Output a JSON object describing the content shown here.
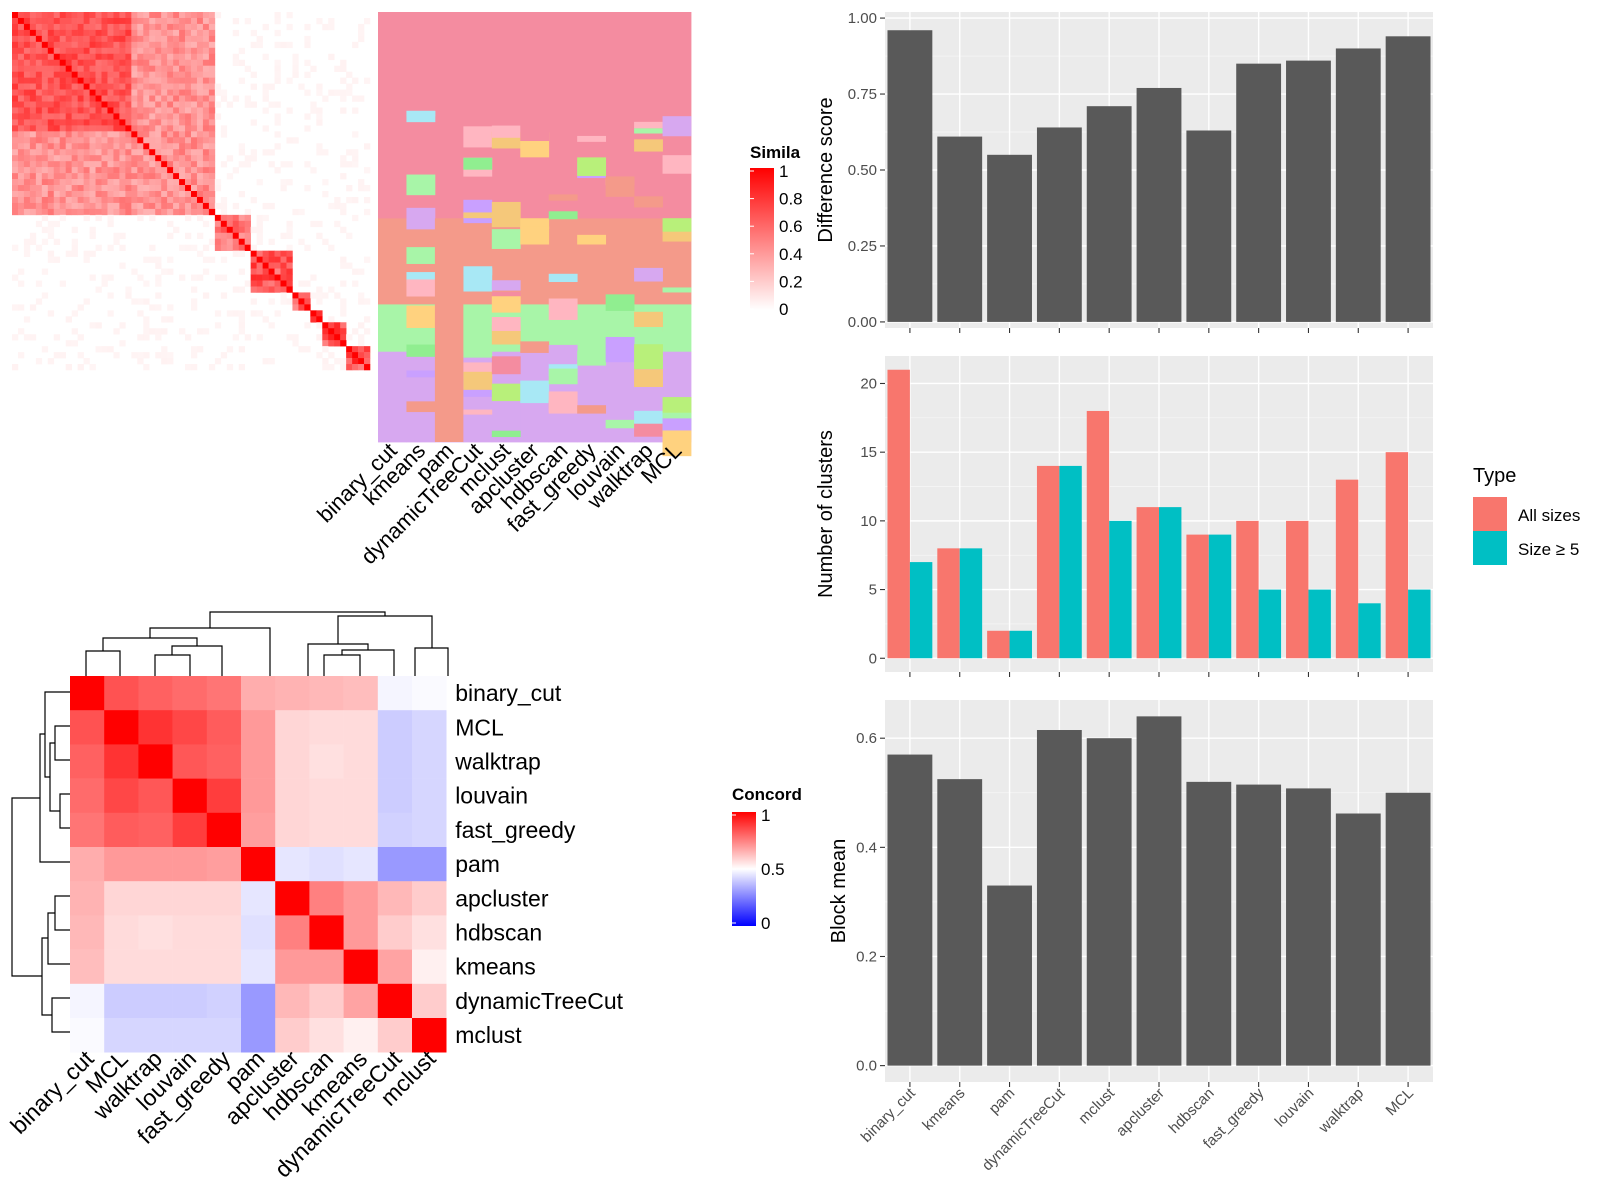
{
  "colors": {
    "bar": "#595959",
    "panel": "#ebebeb",
    "all_sizes": "#F8766D",
    "size_ge_5": "#00BFC4",
    "heat_high": "#ff0000",
    "heat_mid": "#ffffff",
    "heat_low": "#0000ff"
  },
  "similarity_panel": {
    "legend_title": "Simila",
    "legend_ticks": [
      "1",
      "0.8",
      "0.6",
      "0.4",
      "0.2",
      "0"
    ],
    "column_labels": [
      "binary_cut",
      "kmeans",
      "pam",
      "dynamicTreeCut",
      "mclust",
      "apcluster",
      "hdbscan",
      "fast_greedy",
      "louvain",
      "walktrap",
      "MCL"
    ]
  },
  "concordance_panel": {
    "legend_title": "Concord",
    "legend_ticks": [
      "1",
      "0.5",
      "0"
    ],
    "methods": [
      "binary_cut",
      "MCL",
      "walktrap",
      "louvain",
      "fast_greedy",
      "pam",
      "apcluster",
      "hdbscan",
      "kmeans",
      "dynamicTreeCut",
      "mclust"
    ],
    "matrix": [
      [
        1.0,
        0.84,
        0.81,
        0.79,
        0.77,
        0.66,
        0.65,
        0.64,
        0.63,
        0.48,
        0.49
      ],
      [
        0.84,
        1.0,
        0.9,
        0.86,
        0.82,
        0.7,
        0.58,
        0.57,
        0.57,
        0.4,
        0.42
      ],
      [
        0.81,
        0.9,
        1.0,
        0.83,
        0.81,
        0.7,
        0.58,
        0.56,
        0.57,
        0.4,
        0.42
      ],
      [
        0.79,
        0.86,
        0.83,
        1.0,
        0.88,
        0.7,
        0.58,
        0.57,
        0.57,
        0.4,
        0.42
      ],
      [
        0.77,
        0.82,
        0.81,
        0.88,
        1.0,
        0.69,
        0.58,
        0.57,
        0.57,
        0.41,
        0.42
      ],
      [
        0.66,
        0.7,
        0.7,
        0.7,
        0.69,
        1.0,
        0.45,
        0.44,
        0.45,
        0.3,
        0.3
      ],
      [
        0.65,
        0.58,
        0.58,
        0.58,
        0.58,
        0.45,
        1.0,
        0.75,
        0.7,
        0.64,
        0.6
      ],
      [
        0.64,
        0.57,
        0.56,
        0.57,
        0.57,
        0.44,
        0.75,
        1.0,
        0.7,
        0.6,
        0.56
      ],
      [
        0.63,
        0.57,
        0.57,
        0.57,
        0.57,
        0.45,
        0.7,
        0.7,
        1.0,
        0.68,
        0.53
      ],
      [
        0.48,
        0.4,
        0.4,
        0.4,
        0.41,
        0.3,
        0.64,
        0.6,
        0.68,
        1.0,
        0.6
      ],
      [
        0.49,
        0.42,
        0.42,
        0.42,
        0.42,
        0.3,
        0.6,
        0.56,
        0.53,
        0.6,
        1.0
      ]
    ]
  },
  "chart_data": [
    {
      "type": "bar",
      "title": "",
      "categories": [
        "binary_cut",
        "kmeans",
        "pam",
        "dynamicTreeCut",
        "mclust",
        "apcluster",
        "hdbscan",
        "fast_greedy",
        "louvain",
        "walktrap",
        "MCL"
      ],
      "values": [
        0.96,
        0.61,
        0.55,
        0.64,
        0.71,
        0.77,
        0.63,
        0.85,
        0.86,
        0.9,
        0.94
      ],
      "ylabel": "Difference score",
      "ylim": [
        -0.02,
        1.02
      ],
      "yticks": [
        "0.00",
        "0.25",
        "0.50",
        "0.75",
        "1.00"
      ],
      "grid": true
    },
    {
      "type": "bar",
      "title": "",
      "categories": [
        "binary_cut",
        "kmeans",
        "pam",
        "dynamicTreeCut",
        "mclust",
        "apcluster",
        "hdbscan",
        "fast_greedy",
        "louvain",
        "walktrap",
        "MCL"
      ],
      "series": [
        {
          "name": "All sizes",
          "values": [
            21,
            8,
            2,
            14,
            18,
            11,
            9,
            10,
            10,
            13,
            15
          ]
        },
        {
          "name": "Size ≥ 5",
          "values": [
            7,
            8,
            2,
            14,
            10,
            11,
            9,
            5,
            5,
            4,
            5
          ]
        }
      ],
      "ylabel": "Number of clusters",
      "ylim": [
        -1,
        22
      ],
      "yticks": [
        "0",
        "5",
        "10",
        "15",
        "20"
      ],
      "legend_title": "Type",
      "legend_position": "right",
      "grid": true
    },
    {
      "type": "bar",
      "title": "",
      "categories": [
        "binary_cut",
        "kmeans",
        "pam",
        "dynamicTreeCut",
        "mclust",
        "apcluster",
        "hdbscan",
        "fast_greedy",
        "louvain",
        "walktrap",
        "MCL"
      ],
      "values": [
        0.57,
        0.525,
        0.33,
        0.615,
        0.6,
        0.64,
        0.52,
        0.515,
        0.508,
        0.462,
        0.5
      ],
      "ylabel": "Block mean",
      "ylim": [
        -0.03,
        0.67
      ],
      "yticks": [
        "0.0",
        "0.2",
        "0.4",
        "0.6"
      ],
      "xlabel": "",
      "grid": true
    }
  ]
}
